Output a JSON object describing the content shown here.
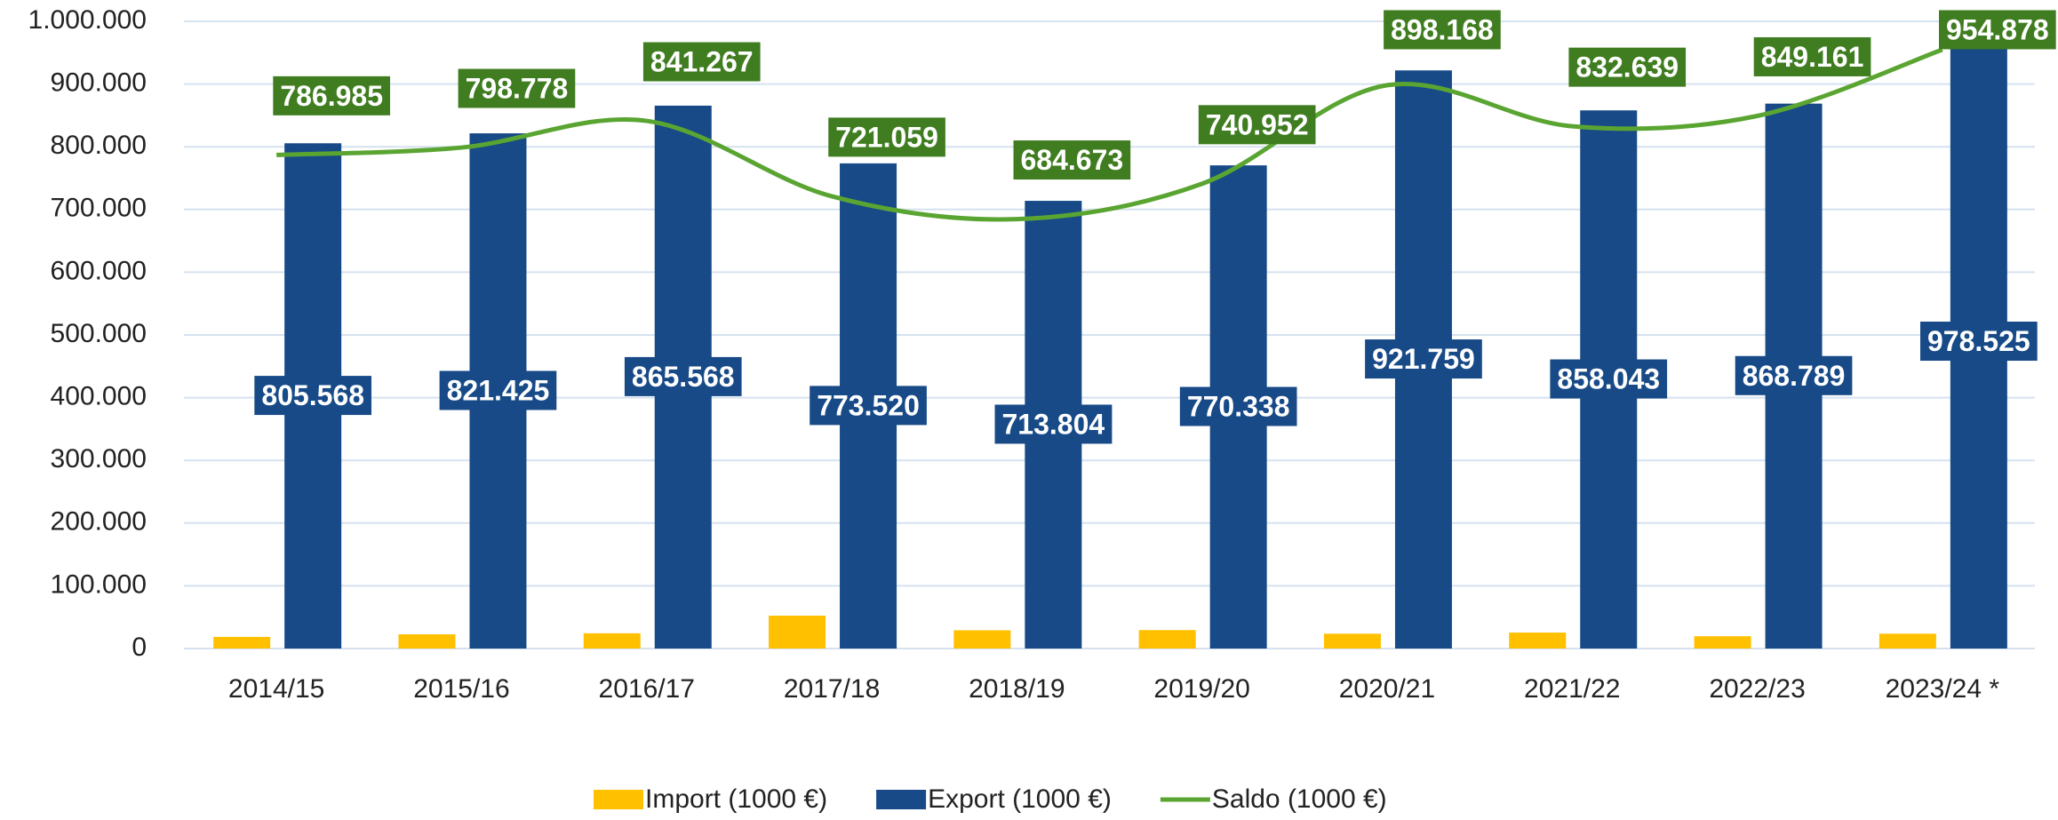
{
  "chart_data": {
    "type": "bar-line",
    "categories": [
      "2014/15",
      "2015/16",
      "2016/17",
      "2017/18",
      "2018/19",
      "2019/20",
      "2020/21",
      "2021/22",
      "2022/23",
      "2023/24 *"
    ],
    "series": [
      {
        "name": "Import (1000 €)",
        "type": "bar",
        "color": "#ffc000",
        "values": [
          18583,
          22647,
          24301,
          52461,
          29131,
          29386,
          23591,
          25404,
          19628,
          23647
        ]
      },
      {
        "name": "Export (1000 €)",
        "type": "bar",
        "color": "#174a87",
        "values": [
          805568,
          821425,
          865568,
          773520,
          713804,
          770338,
          921759,
          858043,
          868789,
          978525
        ],
        "value_labels": [
          "805.568",
          "821.425",
          "865.568",
          "773.520",
          "713.804",
          "770.338",
          "921.759",
          "858.043",
          "868.789",
          "978.525"
        ]
      },
      {
        "name": "Saldo (1000 €)",
        "type": "line",
        "color": "#5aa532",
        "label_color": "#3f7d20",
        "values": [
          786985,
          798778,
          841267,
          721059,
          684673,
          740952,
          898168,
          832639,
          849161,
          954878
        ],
        "value_labels": [
          "786.985",
          "798.778",
          "841.267",
          "721.059",
          "684.673",
          "740.952",
          "898.168",
          "832.639",
          "849.161",
          "954.878"
        ]
      }
    ],
    "ylim": [
      0,
      1000000
    ],
    "yticks": [
      0,
      {
        "value": 100000,
        "label": "100.000"
      },
      {
        "value": 200000,
        "label": "200.000"
      },
      {
        "value": 300000,
        "label": "300.000"
      },
      {
        "value": 400000,
        "label": "400.000"
      },
      {
        "value": 500000,
        "label": "500.000"
      },
      {
        "value": 600000,
        "label": "600.000"
      },
      {
        "value": 700000,
        "label": "700.000"
      },
      {
        "value": 800000,
        "label": "800.000"
      },
      {
        "value": 900000,
        "label": "900.000"
      },
      {
        "value": 1000000,
        "label": "1.000.000"
      }
    ],
    "grid": true,
    "legend": "bottom"
  }
}
